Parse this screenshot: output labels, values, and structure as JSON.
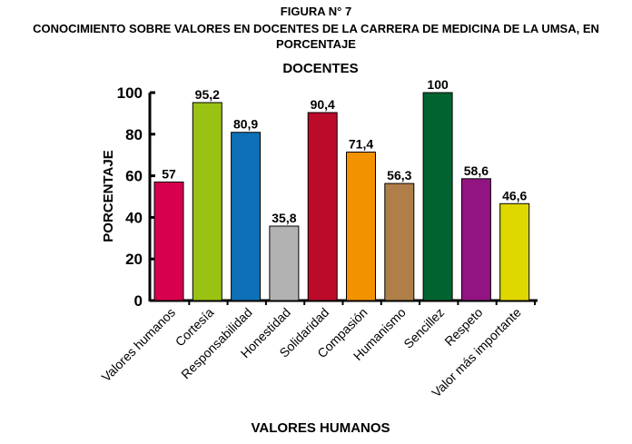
{
  "chart_data": {
    "type": "bar",
    "figure_label": "FIGURA N° 7",
    "title_line1": "CONOCIMIENTO SOBRE VALORES EN DOCENTES DE LA CARRERA DE MEDICINA DE LA UMSA, EN",
    "title_line2": "PORCENTAJE",
    "subtitle": "DOCENTES",
    "xlabel": "VALORES HUMANOS",
    "ylabel": "PORCENTAJE",
    "ylim": [
      0,
      100
    ],
    "yticks": [
      0,
      20,
      40,
      60,
      80,
      100
    ],
    "grid": false,
    "categories": [
      "Valores humanos",
      "Cortesía",
      "Responsabilidad",
      "Honestidad",
      "Solidaridad",
      "Compasión",
      "Humanismo",
      "Sencillez",
      "Respeto",
      "Valor más importante"
    ],
    "values": [
      57,
      95.2,
      80.9,
      35.8,
      90.4,
      71.4,
      56.3,
      100,
      58.6,
      46.6
    ],
    "data_labels": [
      "57",
      "95,2",
      "80,9",
      "35,8",
      "90,4",
      "71,4",
      "56,3",
      "100",
      "58,6",
      "46,6"
    ],
    "colors": [
      "#d6004f",
      "#9ac212",
      "#0d70b6",
      "#b2b2b2",
      "#bb0a2a",
      "#f39200",
      "#b07e48",
      "#006330",
      "#921482",
      "#dfd800"
    ]
  }
}
